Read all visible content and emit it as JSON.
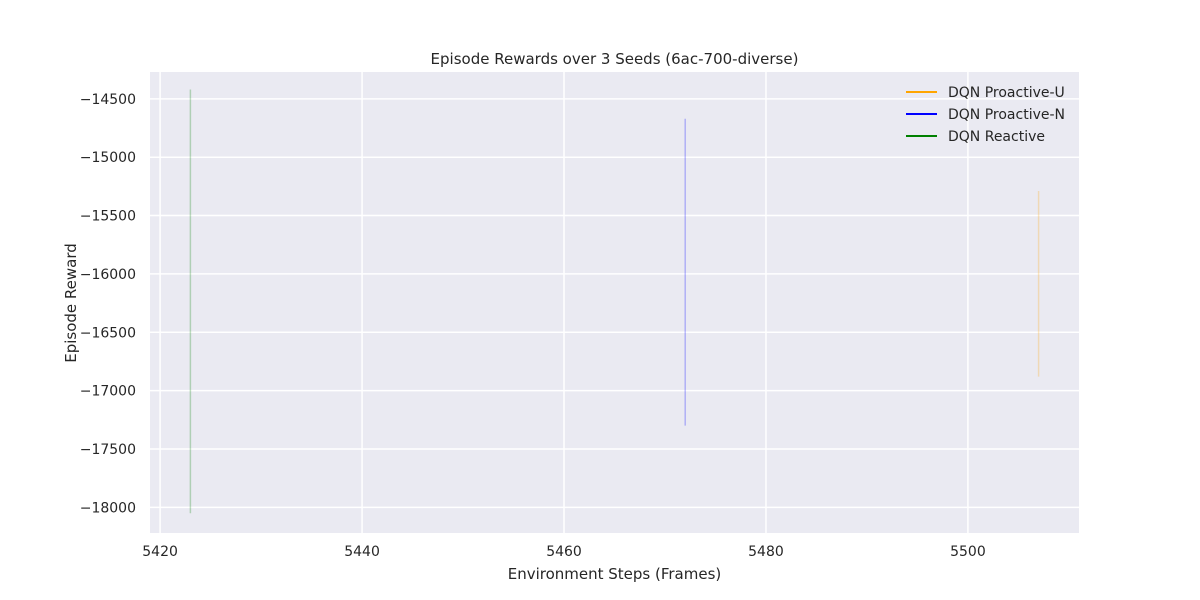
{
  "chart_data": {
    "type": "line",
    "title": "Episode Rewards over 3 Seeds (6ac-700-diverse)",
    "xlabel": "Environment Steps (Frames)",
    "ylabel": "Episode Reward",
    "xlim": [
      5419,
      5511
    ],
    "ylim": [
      -18220,
      -14270
    ],
    "xticks": [
      5420,
      5440,
      5460,
      5480,
      5500
    ],
    "yticks": [
      -18000,
      -17500,
      -17000,
      -16500,
      -16000,
      -15500,
      -15000,
      -14500
    ],
    "grid": true,
    "legend_position": "top-right",
    "series": [
      {
        "name": "DQN Proactive-U",
        "color": "#ffa500",
        "x": [
          5507,
          5507
        ],
        "y": [
          -15290,
          -16880
        ]
      },
      {
        "name": "DQN Proactive-N",
        "color": "#0000ff",
        "x": [
          5472,
          5472
        ],
        "y": [
          -14670,
          -17300
        ]
      },
      {
        "name": "DQN Reactive",
        "color": "#008000",
        "x": [
          5423,
          5423
        ],
        "y": [
          -14420,
          -18050
        ]
      }
    ]
  }
}
